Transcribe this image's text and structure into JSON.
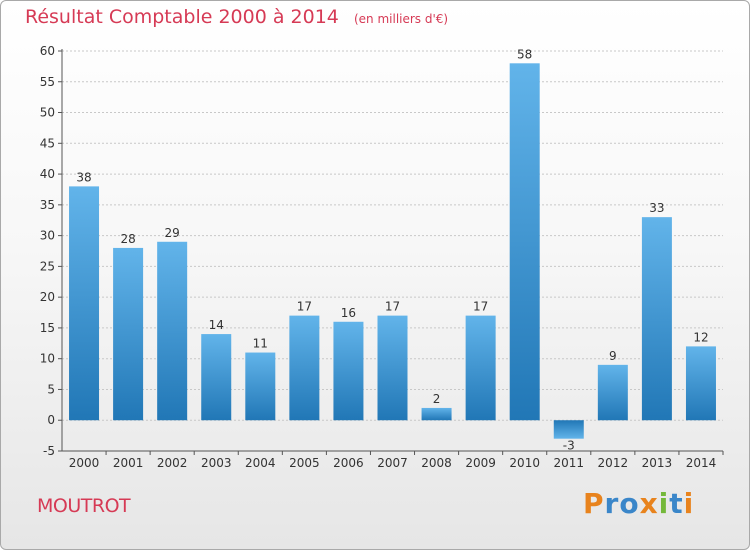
{
  "header": {
    "title": "Résultat Comptable 2000 à 2014",
    "subtitle": "(en milliers d'€)"
  },
  "footer": {
    "commune": "MOUTROT",
    "logo_text": "Proxiti",
    "logo_colors": [
      "#e8831d",
      "#3a86c9",
      "#3a86c9",
      "#e8831d",
      "#74b83a",
      "#3a86c9",
      "#e8831d"
    ]
  },
  "colors": {
    "accent": "#d63a55",
    "bar_light": "#62b4ea",
    "bar_dark": "#2177b6",
    "grid": "#c8c8c8",
    "axis": "#555555"
  },
  "chart_data": {
    "type": "bar",
    "title": "Résultat Comptable 2000 à 2014",
    "subtitle": "(en milliers d'€)",
    "categories": [
      "2000",
      "2001",
      "2002",
      "2003",
      "2004",
      "2005",
      "2006",
      "2007",
      "2008",
      "2009",
      "2010",
      "2011",
      "2012",
      "2013",
      "2014"
    ],
    "values": [
      38,
      28,
      29,
      14,
      11,
      17,
      16,
      17,
      2,
      17,
      58,
      -3,
      9,
      33,
      12
    ],
    "data_labels": [
      "38",
      "28",
      "29",
      "14",
      "11",
      "17",
      "16",
      "17",
      "2",
      "17",
      "58",
      "-3",
      "9",
      "33",
      "12"
    ],
    "ylim": [
      -5,
      60
    ],
    "yticks": [
      -5,
      0,
      5,
      10,
      15,
      20,
      25,
      30,
      35,
      40,
      45,
      50,
      55,
      60
    ],
    "grid": true,
    "xlabel": "",
    "ylabel": ""
  }
}
